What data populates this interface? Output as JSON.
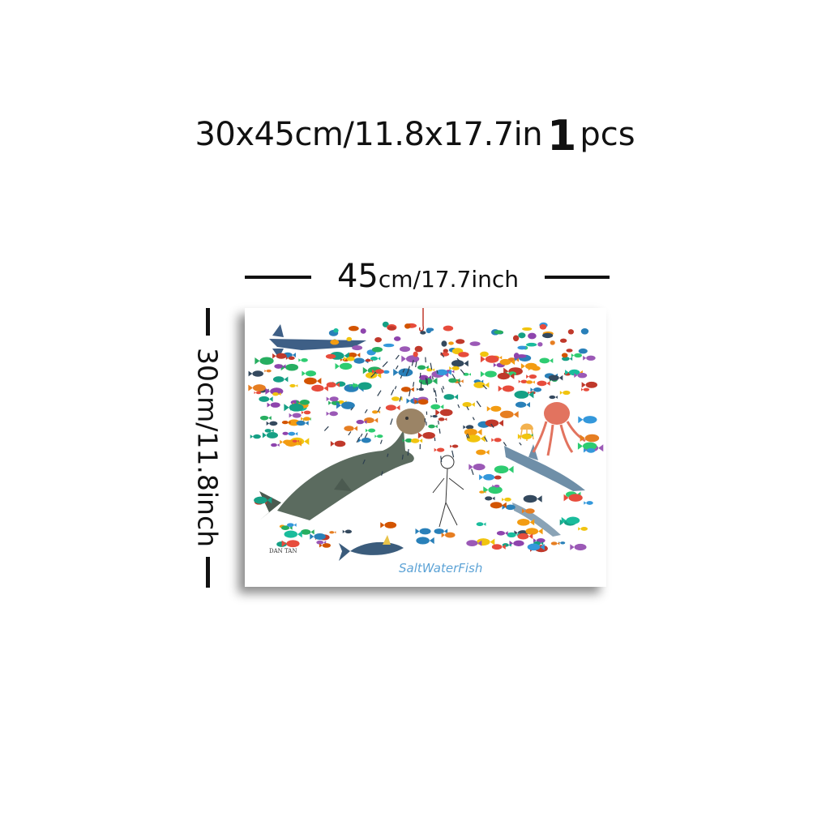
{
  "headline": {
    "size": "30x45cm/11.8x17.7in",
    "count": "1",
    "unit": "pcs"
  },
  "dimensions": {
    "width_big": "45",
    "width_rest": "cm/17.7inch",
    "height": "30cm/11.8inch"
  },
  "poster": {
    "title": "SaltWaterFish",
    "signature": "DAN TAN",
    "colors": {
      "title": "#5da3d6",
      "shark": "#5b6b5f",
      "octopus": "#e2735f",
      "jelly": "#f3b24f"
    }
  }
}
